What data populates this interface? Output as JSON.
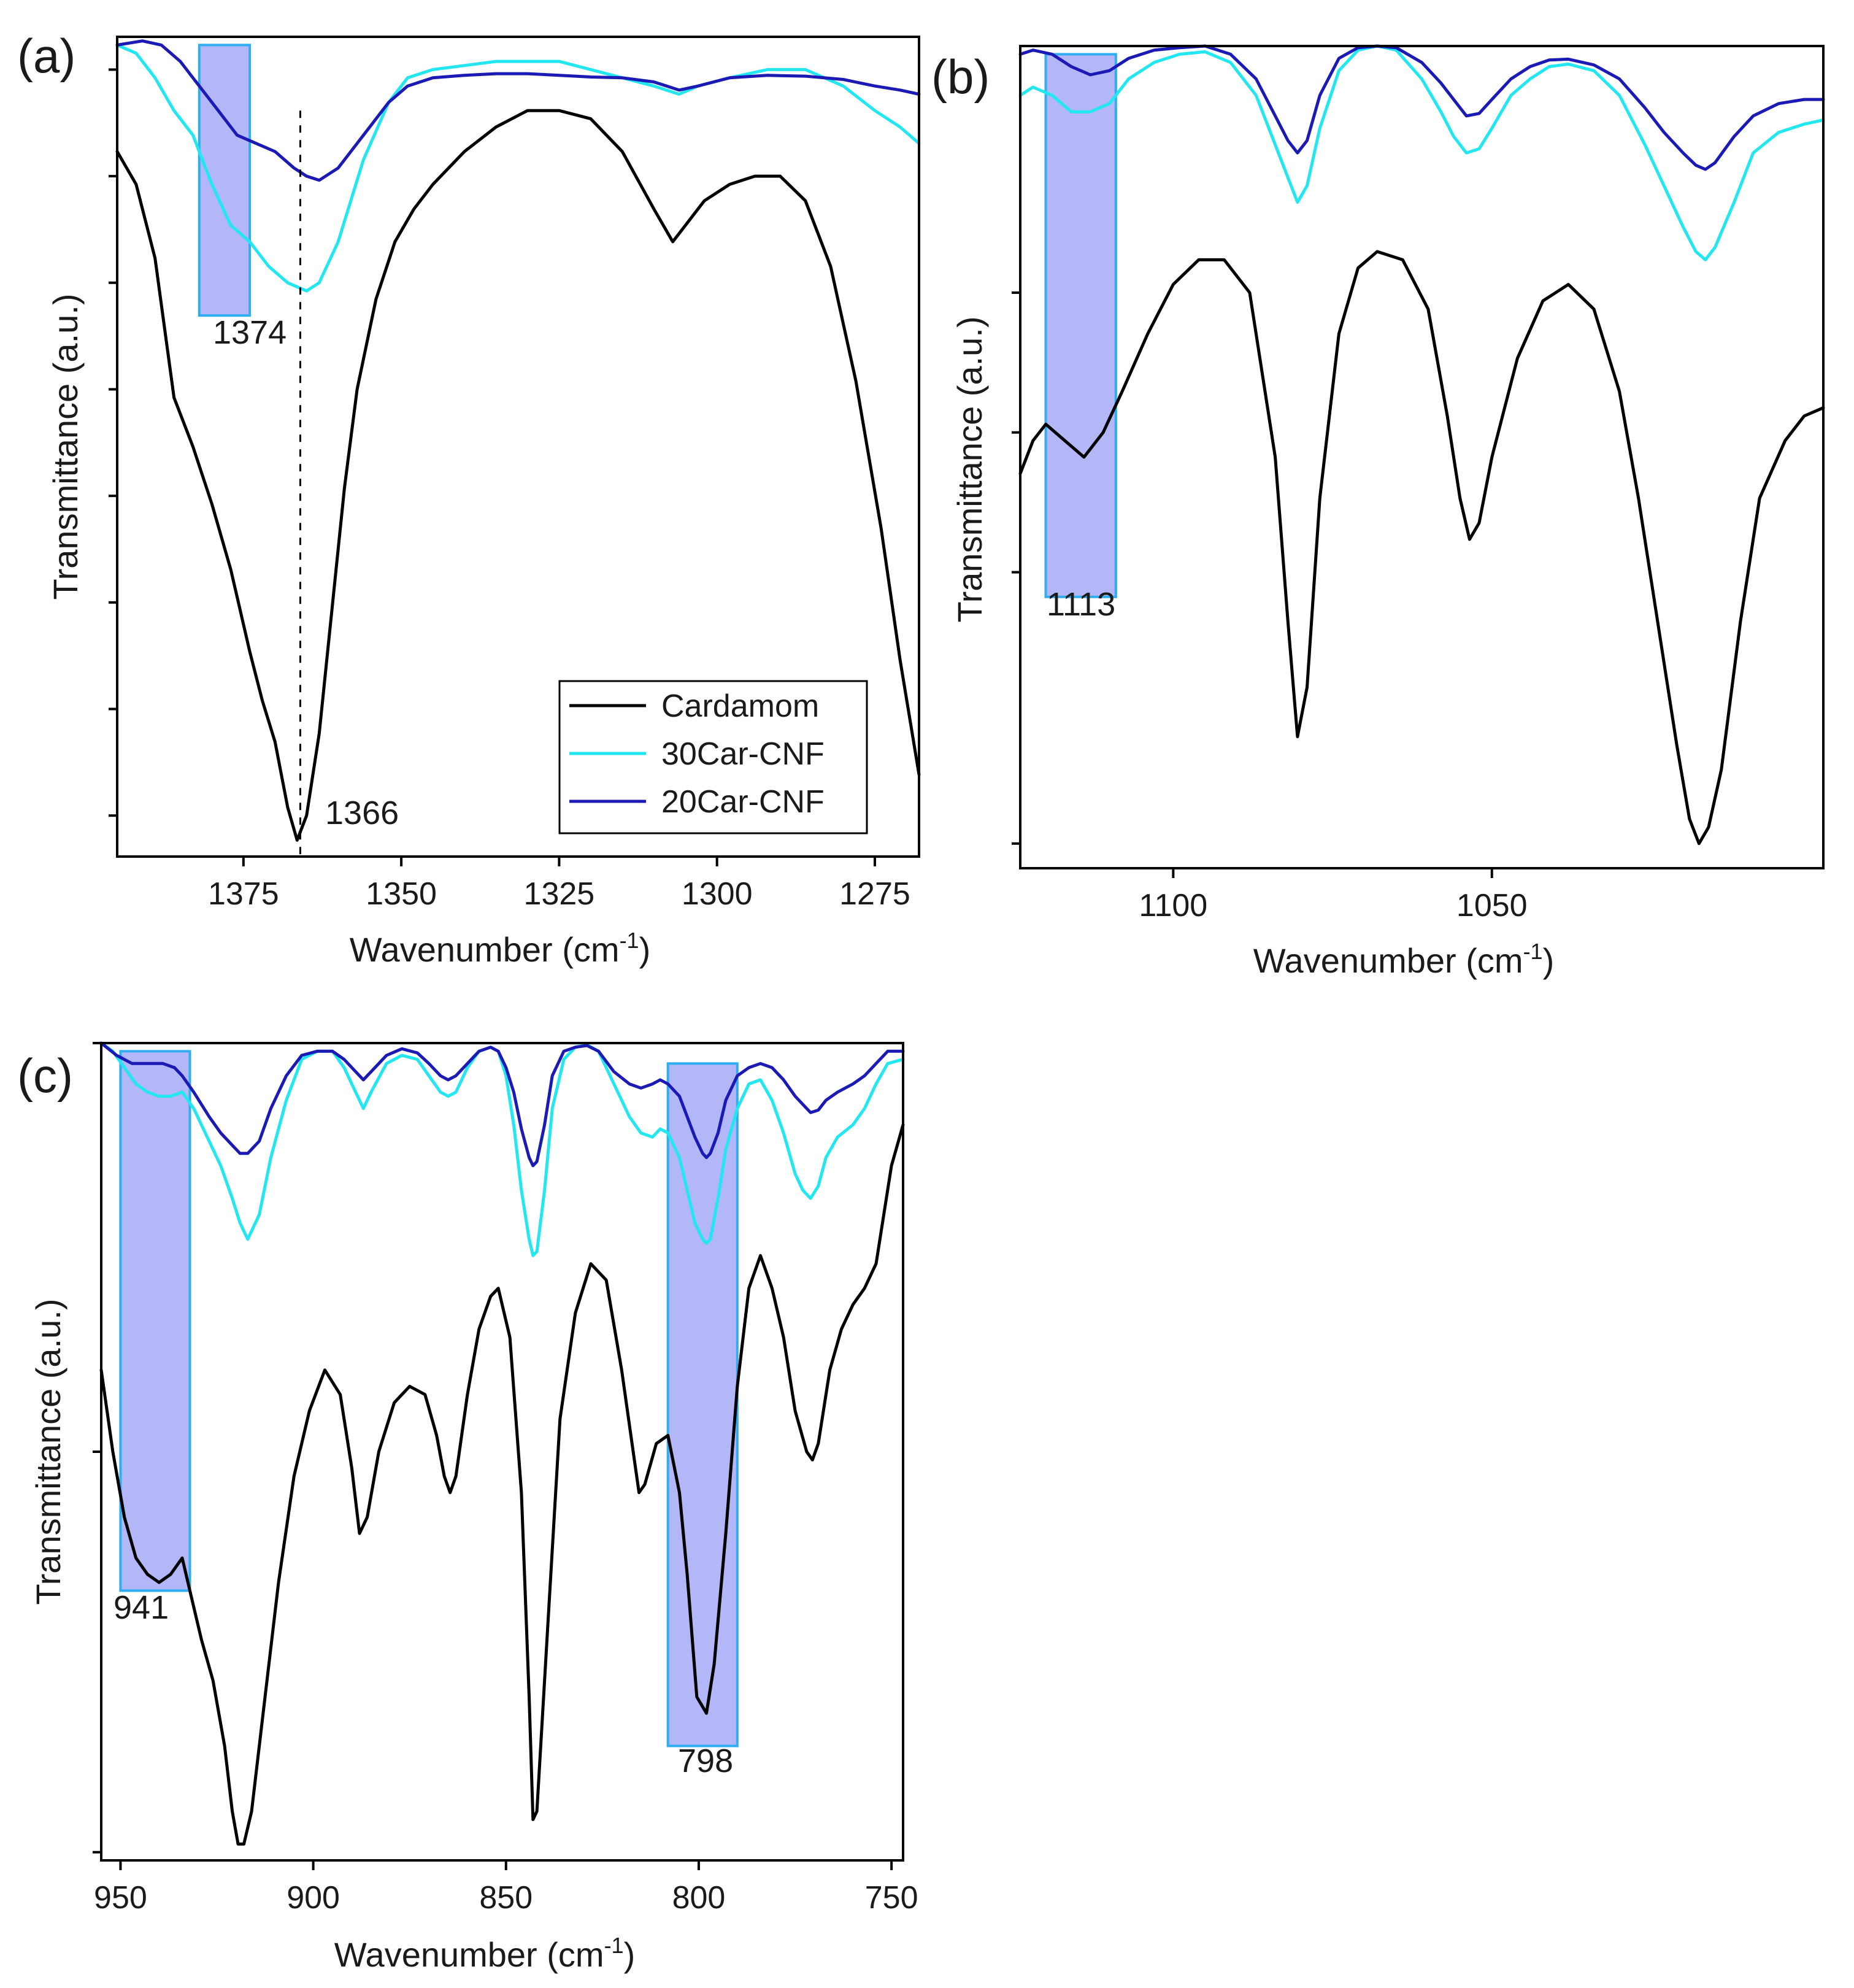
{
  "chart_data": [
    {
      "id": "a",
      "type": "line",
      "panel_label": "(a)",
      "xlabel": "Wavenumber (cm",
      "xlabel_sup": "-1",
      "xlabel_tail": ")",
      "ylabel": "Transmittance (a.u.)",
      "xlim": [
        1395,
        1268
      ],
      "ylim": [
        0,
        100
      ],
      "x_ticks": [
        1375,
        1350,
        1325,
        1300,
        1275
      ],
      "x_tick_labels": [
        "1375",
        "1350",
        "1325",
        "1300",
        "1275"
      ],
      "y_ticks": [
        5,
        18,
        31,
        44,
        57,
        70,
        83,
        96
      ],
      "legend": [
        "Cardamom",
        "30Car-CNF",
        "20Car-CNF"
      ],
      "legend_position": "bottom-right",
      "highlights": [
        {
          "x_from": 1382,
          "x_to": 1374,
          "y_from": 66,
          "y_to": 99,
          "label": "1374"
        }
      ],
      "vlines": [
        {
          "x": 1366,
          "y_from": 0,
          "y_to": 91
        }
      ],
      "annotations": [
        {
          "text": "1366",
          "x": 1364,
          "y": 3
        }
      ],
      "series": [
        {
          "name": "Cardamom",
          "color": "#000000",
          "x": [
            1395,
            1392,
            1389,
            1386,
            1383,
            1380,
            1377,
            1374,
            1372,
            1370,
            1368,
            1366.5,
            1365,
            1363,
            1361,
            1359,
            1357,
            1354,
            1351,
            1348,
            1345,
            1340,
            1335,
            1330,
            1325,
            1320,
            1315,
            1310,
            1307,
            1305,
            1302,
            1298,
            1294,
            1290,
            1286,
            1282,
            1278,
            1274,
            1271,
            1268
          ],
          "y": [
            86,
            82,
            73,
            56,
            50,
            43,
            35,
            25,
            19,
            14,
            6,
            2,
            5,
            15,
            30,
            45,
            57,
            68,
            75,
            79,
            82,
            86,
            89,
            91,
            91,
            90,
            86,
            79,
            75,
            77,
            80,
            82,
            83,
            83,
            80,
            72,
            58,
            40,
            24,
            10
          ]
        },
        {
          "name": "30Car-CNF",
          "color": "#22e6f0",
          "x": [
            1395,
            1392,
            1389,
            1386,
            1383,
            1380,
            1377,
            1374,
            1371,
            1368,
            1365,
            1363,
            1360,
            1356,
            1352,
            1349,
            1345,
            1340,
            1335,
            1330,
            1325,
            1320,
            1315,
            1310,
            1306,
            1303,
            1298,
            1292,
            1286,
            1280,
            1275,
            1271,
            1268
          ],
          "y": [
            99,
            98,
            95,
            91,
            88,
            82,
            77,
            75,
            72,
            70,
            69,
            70,
            75,
            85,
            92,
            95,
            96,
            96.5,
            97,
            97,
            97,
            96,
            95,
            94,
            93,
            94,
            95,
            96,
            96,
            94,
            91,
            89,
            87
          ]
        },
        {
          "name": "20Car-CNF",
          "color": "#1c1ab5",
          "x": [
            1395,
            1391,
            1388,
            1385,
            1382,
            1379,
            1376,
            1373,
            1370,
            1367,
            1365,
            1363,
            1360,
            1356,
            1352,
            1349,
            1345,
            1340,
            1335,
            1330,
            1325,
            1320,
            1315,
            1310,
            1306,
            1303,
            1298,
            1292,
            1286,
            1280,
            1275,
            1271,
            1268
          ],
          "y": [
            99,
            99.5,
            99,
            97,
            94,
            91,
            88,
            87,
            86,
            84,
            83,
            82.5,
            84,
            88,
            92,
            94,
            95,
            95.3,
            95.5,
            95.5,
            95.3,
            95.1,
            95,
            94.5,
            93.5,
            94,
            95,
            95.3,
            95.2,
            94.8,
            94,
            93.5,
            93
          ]
        }
      ]
    },
    {
      "id": "b",
      "type": "line",
      "panel_label": "(b)",
      "xlabel": "Wavenumber (cm",
      "xlabel_sup": "-1",
      "xlabel_tail": ")",
      "ylabel": "Transmittance (a.u.)",
      "xlim": [
        1124,
        998
      ],
      "ylim": [
        0,
        100
      ],
      "x_ticks": [
        1100,
        1050
      ],
      "x_tick_labels": [
        "1100",
        "1050"
      ],
      "y_ticks": [
        3,
        36,
        53,
        70
      ],
      "highlights": [
        {
          "x_from": 1120,
          "x_to": 1109,
          "y_from": 33,
          "y_to": 99,
          "label": "1113"
        }
      ],
      "series": [
        {
          "name": "Cardamom",
          "color": "#000000",
          "x": [
            1124,
            1122,
            1120,
            1117,
            1114,
            1111,
            1108,
            1104,
            1100,
            1096,
            1092,
            1088,
            1084,
            1082,
            1080.5,
            1079,
            1077,
            1074,
            1071,
            1068,
            1064,
            1060,
            1057,
            1055,
            1053.5,
            1052,
            1050,
            1046,
            1042,
            1038,
            1034,
            1030,
            1027,
            1024,
            1021,
            1019,
            1017.5,
            1016,
            1014,
            1011,
            1008,
            1004,
            1001,
            998
          ],
          "y": [
            48,
            52,
            54,
            52,
            50,
            53,
            58,
            65,
            71,
            74,
            74,
            70,
            50,
            30,
            16,
            22,
            45,
            65,
            73,
            75,
            74,
            68,
            55,
            45,
            40,
            42,
            50,
            62,
            69,
            71,
            68,
            58,
            45,
            30,
            15,
            6,
            3,
            5,
            12,
            30,
            45,
            52,
            55,
            56
          ]
        },
        {
          "name": "30Car-CNF",
          "color": "#22e6f0",
          "x": [
            1124,
            1122,
            1119,
            1116,
            1113,
            1110,
            1107,
            1103,
            1099,
            1095,
            1091,
            1087,
            1084,
            1082,
            1080.5,
            1079,
            1077,
            1074,
            1071,
            1068,
            1065,
            1061,
            1058,
            1056,
            1054,
            1052,
            1050,
            1047,
            1044,
            1041,
            1038,
            1034,
            1030,
            1026,
            1023,
            1020,
            1018,
            1016.5,
            1015,
            1012,
            1009,
            1005,
            1001,
            998
          ],
          "y": [
            94,
            95,
            94,
            92,
            92,
            93,
            96,
            98,
            99,
            99.3,
            98,
            94,
            88,
            84,
            81,
            83,
            90,
            97,
            99.5,
            100,
            99.5,
            96,
            92,
            89,
            87,
            87.5,
            90,
            94,
            96,
            97.5,
            97.8,
            97,
            94,
            88,
            83,
            78,
            75,
            74,
            75.5,
            81,
            87,
            89.5,
            90.5,
            91
          ]
        },
        {
          "name": "20Car-CNF",
          "color": "#1c1ab5",
          "x": [
            1124,
            1122,
            1119,
            1116,
            1113,
            1110,
            1107,
            1103,
            1099,
            1095,
            1091,
            1087,
            1084,
            1082,
            1080.5,
            1079,
            1077,
            1074,
            1071,
            1068,
            1065,
            1061,
            1058,
            1056,
            1054,
            1052,
            1050,
            1047,
            1044,
            1041,
            1038,
            1034,
            1030,
            1026,
            1023,
            1020,
            1018,
            1016.5,
            1015,
            1012,
            1009,
            1005,
            1001,
            998
          ],
          "y": [
            99,
            99.5,
            99,
            97.5,
            96.5,
            97,
            98.5,
            99.5,
            99.8,
            100,
            99,
            96,
            91.5,
            88.5,
            87,
            88.5,
            94,
            98.5,
            99.8,
            100,
            99.8,
            98,
            95.5,
            93.5,
            91.5,
            91.8,
            93.5,
            96,
            97.5,
            98.3,
            98.4,
            97.7,
            96,
            92.5,
            89.5,
            87,
            85.5,
            85,
            85.8,
            89,
            91.5,
            93,
            93.5,
            93.5
          ]
        }
      ]
    },
    {
      "id": "c",
      "type": "line",
      "panel_label": "(c)",
      "xlabel": "Wavenumber (cm",
      "xlabel_sup": "-1",
      "xlabel_tail": ")",
      "ylabel": "Transmittance (a.u.)",
      "xlim": [
        955,
        747
      ],
      "ylim": [
        0,
        100
      ],
      "x_ticks": [
        950,
        900,
        850,
        800,
        750
      ],
      "x_tick_labels": [
        "950",
        "900",
        "850",
        "800",
        "750"
      ],
      "y_ticks": [
        1,
        50,
        100
      ],
      "highlights": [
        {
          "x_from": 950,
          "x_to": 932,
          "y_from": 33,
          "y_to": 99,
          "label": "941"
        },
        {
          "x_from": 808,
          "x_to": 790,
          "y_from": 14,
          "y_to": 97.5,
          "label": "798"
        }
      ],
      "series": [
        {
          "name": "Cardamom",
          "color": "#000000",
          "x": [
            955,
            952,
            949,
            946,
            943,
            940,
            937,
            934,
            932,
            929,
            926,
            923,
            921,
            919.5,
            918,
            916,
            913,
            909,
            905,
            901,
            897,
            893,
            890,
            888,
            886,
            883,
            879,
            875,
            871,
            868,
            866,
            864.5,
            863,
            860,
            857,
            854,
            852,
            849,
            846,
            844,
            843,
            842,
            839,
            836,
            832,
            828,
            824,
            820,
            817,
            815.5,
            814,
            811,
            808,
            805,
            803,
            800.5,
            798,
            796,
            793,
            790,
            787,
            784,
            781,
            778,
            775,
            772,
            770.5,
            769,
            766,
            763,
            760,
            757,
            754,
            750,
            747
          ],
          "y": [
            60,
            50,
            42,
            37,
            35,
            34,
            35,
            37,
            33,
            27,
            22,
            14,
            6,
            2,
            2,
            6,
            18,
            34,
            47,
            55,
            60,
            57,
            48,
            40,
            42,
            50,
            56,
            58,
            57,
            52,
            47,
            45,
            47,
            57,
            65,
            69,
            70,
            64,
            45,
            20,
            5,
            6,
            30,
            54,
            67,
            73,
            71,
            60,
            50,
            45,
            46,
            51,
            52,
            45,
            35,
            20,
            18,
            24,
            40,
            58,
            70,
            74,
            70,
            64,
            55,
            50,
            49,
            51,
            60,
            65,
            68,
            70,
            73,
            85,
            90
          ]
        },
        {
          "name": "30Car-CNF",
          "color": "#22e6f0",
          "x": [
            955,
            952,
            949,
            946,
            943,
            940,
            937,
            934,
            931,
            927,
            924,
            921,
            919,
            917,
            914,
            911,
            907,
            903,
            899,
            895,
            892,
            889,
            887,
            885,
            881,
            877,
            873,
            870,
            867,
            865,
            863,
            860,
            857,
            854,
            852,
            850,
            848,
            846,
            844,
            843,
            842,
            840,
            838,
            835,
            832,
            829,
            826,
            822,
            818,
            815,
            812,
            810,
            808,
            805,
            803,
            801,
            799,
            798,
            797,
            795,
            793,
            790,
            787,
            784,
            781,
            778,
            775,
            773,
            771,
            769,
            767,
            764,
            760,
            757,
            754,
            751,
            747
          ],
          "y": [
            100,
            99,
            97,
            95,
            94,
            93.5,
            93.5,
            94,
            92,
            88,
            85,
            81,
            78,
            76,
            79,
            86,
            93,
            98,
            99,
            99,
            97,
            94,
            92,
            94,
            97.5,
            98.5,
            98,
            96,
            94,
            93.5,
            94,
            97,
            99,
            99.5,
            99,
            96,
            90,
            82,
            76,
            74,
            74.5,
            82,
            92,
            98,
            99.5,
            99.8,
            99,
            95,
            91,
            89,
            88.5,
            89.5,
            89,
            86,
            82,
            78,
            76,
            75.5,
            76,
            81,
            87,
            92,
            95,
            95.5,
            93,
            89,
            84,
            82,
            81,
            82.5,
            86,
            88.5,
            90,
            92,
            95,
            97.5,
            98
          ]
        },
        {
          "name": "20Car-CNF",
          "color": "#1c1ab5",
          "x": [
            955,
            951,
            947,
            943,
            939,
            936,
            934,
            931,
            927,
            924,
            921,
            919,
            917,
            914,
            911,
            907,
            903,
            899,
            895,
            892,
            889,
            887,
            885,
            881,
            877,
            873,
            870,
            867,
            865,
            863,
            860,
            857,
            854,
            852,
            850,
            848,
            846,
            844,
            843,
            842,
            840,
            838,
            835,
            832,
            829,
            826,
            822,
            818,
            815,
            812,
            810,
            808,
            805,
            803,
            801,
            799,
            798,
            797,
            795,
            793,
            790,
            787,
            784,
            781,
            778,
            775,
            773,
            771,
            769,
            767,
            764,
            760,
            757,
            754,
            751,
            747
          ],
          "y": [
            100,
            98.5,
            97.5,
            97.5,
            97.5,
            97,
            96,
            94,
            91,
            89,
            87.5,
            86.5,
            86.5,
            88,
            92,
            96,
            98.5,
            99,
            99,
            98,
            96.5,
            95.5,
            96.5,
            98.5,
            99.3,
            98.8,
            97.5,
            96,
            95.5,
            96,
            97.5,
            99,
            99.5,
            99,
            97,
            94,
            89.5,
            86,
            85,
            85.5,
            90,
            96,
            99,
            99.5,
            99.7,
            99,
            96.5,
            95,
            94.5,
            95,
            95.5,
            95,
            93.5,
            91,
            88.5,
            86.5,
            86,
            86.5,
            89,
            93,
            96,
            97,
            97.5,
            97,
            95.5,
            93.5,
            92.5,
            91.5,
            91.8,
            93,
            94,
            95,
            96,
            97.5,
            99,
            99
          ]
        }
      ]
    }
  ]
}
